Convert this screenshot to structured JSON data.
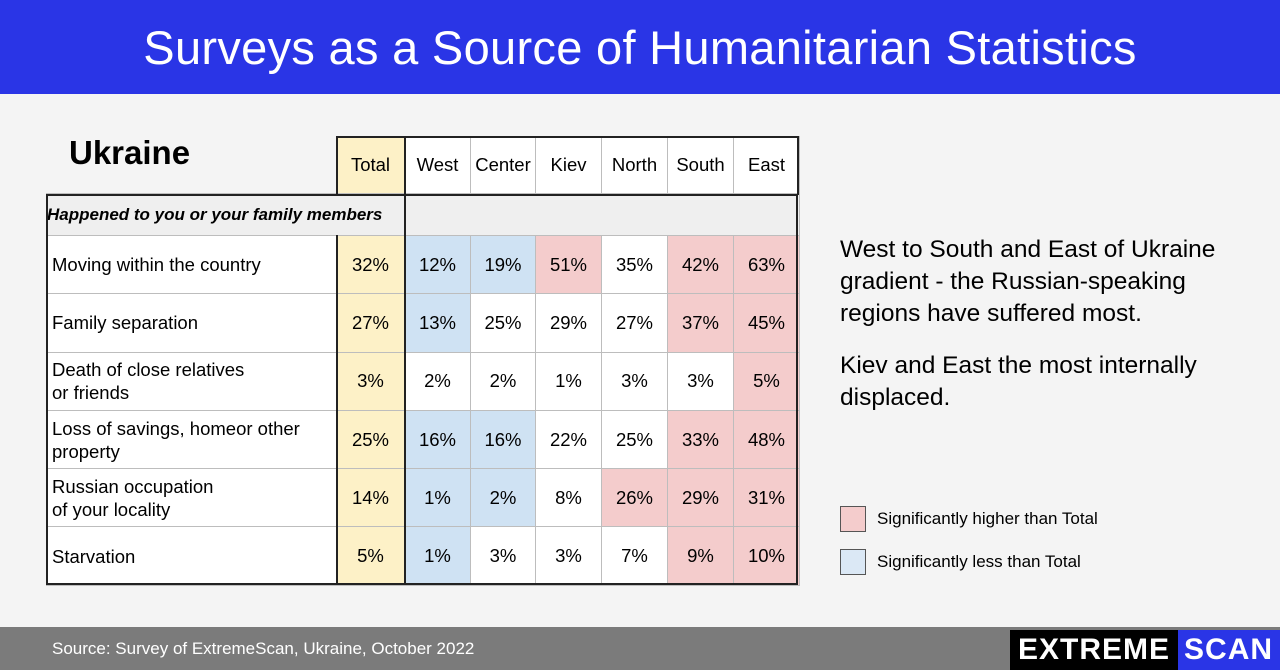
{
  "header": {
    "title": "Surveys as a Source of Humanitarian Statistics"
  },
  "region": "Ukraine",
  "table": {
    "columns": [
      "Total",
      "West",
      "Center",
      "Kiev",
      "North",
      "South",
      "East"
    ],
    "section_title": "Happened to you or your family members",
    "rows": [
      {
        "label": [
          "Moving within the country"
        ],
        "values": [
          "32%",
          "12%",
          "19%",
          "51%",
          "35%",
          "42%",
          "63%"
        ],
        "flags": [
          "total",
          "low",
          "low",
          "high",
          "",
          "high",
          "high"
        ]
      },
      {
        "label": [
          "Family separation"
        ],
        "values": [
          "27%",
          "13%",
          "25%",
          "29%",
          "27%",
          "37%",
          "45%"
        ],
        "flags": [
          "total",
          "low",
          "",
          "",
          "",
          "high",
          "high"
        ]
      },
      {
        "label": [
          "Death of close relatives",
          "or friends"
        ],
        "values": [
          "3%",
          "2%",
          "2%",
          "1%",
          "3%",
          "3%",
          "5%"
        ],
        "flags": [
          "total",
          "",
          "",
          "",
          "",
          "",
          "high"
        ]
      },
      {
        "label": [
          "Loss of savings, homeor other",
          "property"
        ],
        "values": [
          "25%",
          "16%",
          "16%",
          "22%",
          "25%",
          "33%",
          "48%"
        ],
        "flags": [
          "total",
          "low",
          "low",
          "",
          "",
          "high",
          "high"
        ]
      },
      {
        "label": [
          "Russian occupation",
          "of your locality"
        ],
        "values": [
          "14%",
          "1%",
          "2%",
          "8%",
          "26%",
          "29%",
          "31%"
        ],
        "flags": [
          "total",
          "low",
          "low",
          "",
          "high",
          "high",
          "high"
        ]
      },
      {
        "label": [
          "Starvation"
        ],
        "values": [
          "5%",
          "1%",
          "3%",
          "3%",
          "7%",
          "9%",
          "10%"
        ],
        "flags": [
          "total",
          "low",
          "",
          "",
          "",
          "high",
          "high"
        ]
      }
    ]
  },
  "notes": {
    "p1": "West to South and East of Ukraine gradient  -  the Russian-speaking regions have suffered most.",
    "p2": "Kiev and East the most internally displaced."
  },
  "legend": {
    "high": "Significantly higher than Total",
    "low": "Significantly less than Total"
  },
  "colors": {
    "header_bg": "#2a35e6",
    "total": "#fdf1c7",
    "high": "#f4cccc",
    "low": "#cfe2f3"
  },
  "footer": {
    "source": "Source: Survey of ExtremeScan, Ukraine,  October 2022",
    "logo_part1": "EXTREME",
    "logo_part2": "SCAN"
  }
}
